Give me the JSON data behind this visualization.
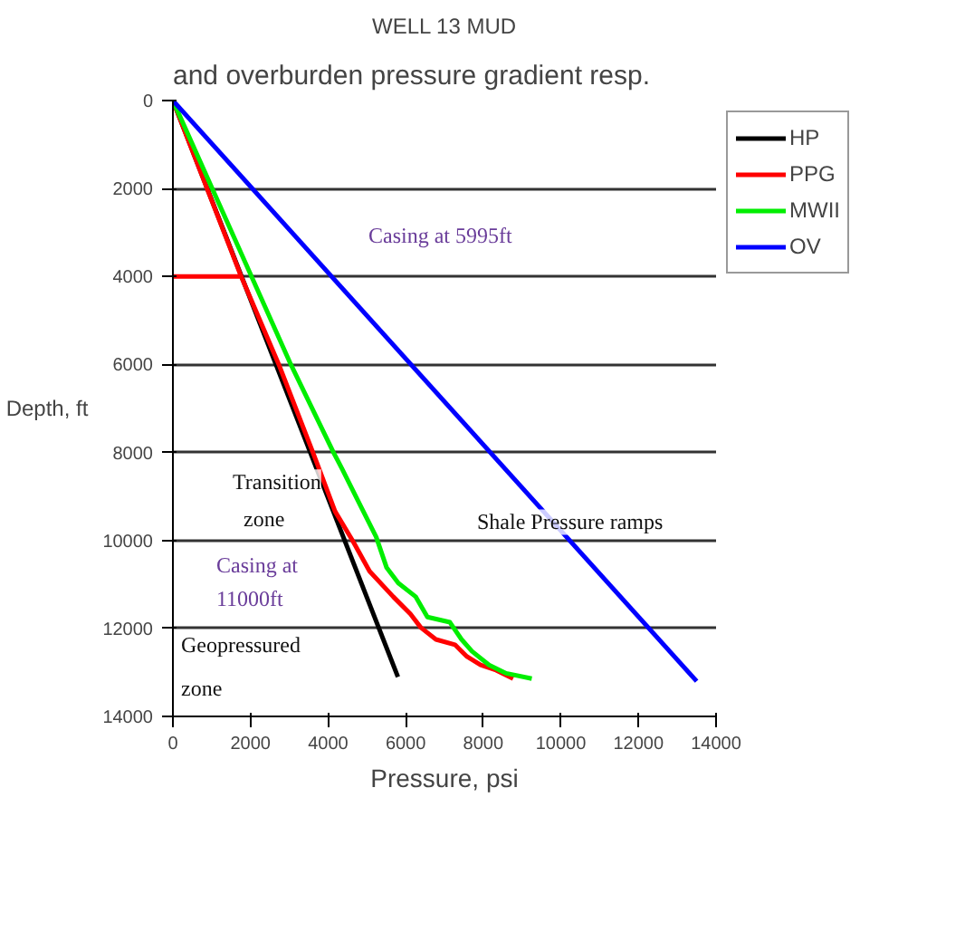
{
  "chart_data": {
    "type": "line",
    "title": "WELL 13 MUD",
    "xlabel": "Pressure, psi",
    "ylabel": "Depth, ft",
    "xlim": [
      0,
      14000
    ],
    "xticks": [
      0,
      2000,
      4000,
      6000,
      8000,
      10000,
      12000,
      14000
    ],
    "ylim": [
      14000,
      0
    ],
    "yticks": [
      0,
      2000,
      4000,
      6000,
      8000,
      10000,
      12000,
      14000
    ],
    "grid": "y",
    "legend": "top right",
    "marker": "none",
    "line_style": "solid",
    "series": [
      {
        "name": "HP",
        "color": "#000000",
        "x": [
          0,
          5800
        ],
        "values": [
          0,
          13100
        ]
      },
      {
        "name": "PPG",
        "color": "#ff0000",
        "x": [
          0,
          1800,
          null,
          0,
          1760,
          2730,
          3610,
          4180,
          4630,
          5070,
          5680,
          6120,
          6390,
          6780,
          7270,
          7580,
          7930,
          8330,
          8770
        ],
        "values": [
          4000,
          4000,
          null,
          0,
          4000,
          6000,
          8000,
          9340,
          10000,
          10700,
          11280,
          11670,
          11980,
          12250,
          12370,
          12640,
          12830,
          12950,
          13140
        ]
      },
      {
        "name": "MWII",
        "color": "#00ee00",
        "x": [
          0,
          3040,
          4140,
          4360,
          4800,
          5240,
          5510,
          5810,
          6260,
          6560,
          7140,
          7440,
          7710,
          8150,
          8590,
          9250
        ],
        "values": [
          0,
          6000,
          8000,
          8370,
          9150,
          9920,
          10620,
          10970,
          11280,
          11740,
          11860,
          12250,
          12520,
          12830,
          13020,
          13140
        ]
      },
      {
        "name": "OV",
        "color": "#0000ff",
        "x": [
          0,
          13500
        ],
        "values": [
          0,
          13200
        ]
      }
    ],
    "annotations": [
      "Casing at 5995ft",
      "Transition",
      "zone",
      "Casing at",
      "11000ft",
      "Geopressured",
      "zone",
      "Shale Pressure ramps",
      "and overburden pressure gradient resp."
    ]
  }
}
